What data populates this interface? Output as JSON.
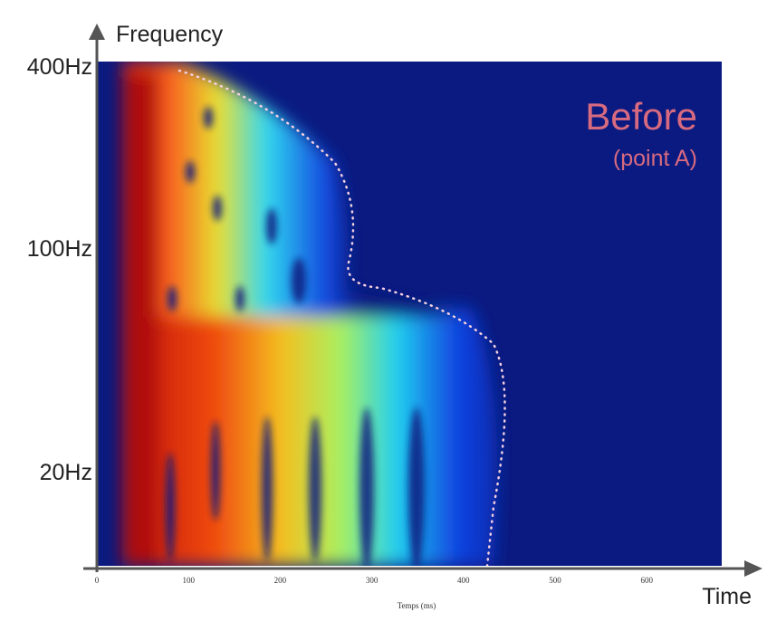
{
  "y_axis": {
    "label": "Frequency",
    "ticks": [
      "400Hz",
      "100Hz",
      "20Hz"
    ]
  },
  "x_axis": {
    "label": "Time",
    "title": "Temps (ms)",
    "ticks": [
      "0",
      "100",
      "200",
      "300",
      "400",
      "500",
      "600"
    ]
  },
  "annotation": {
    "title": "Before",
    "subtitle": "(point A)"
  }
}
